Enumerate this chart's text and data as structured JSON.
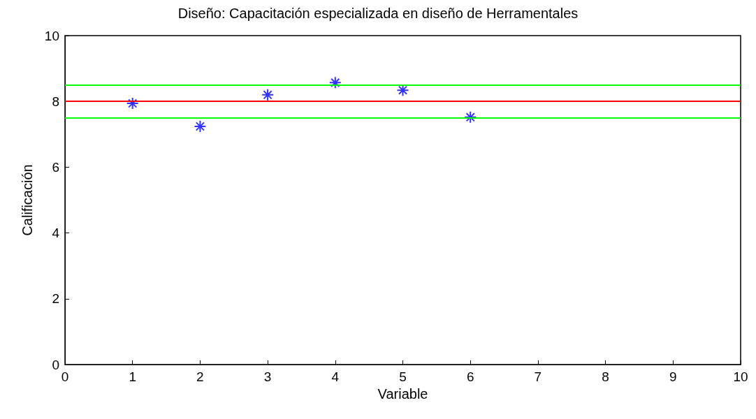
{
  "chart_data": {
    "type": "scatter",
    "title": "Diseño: Capacitación especializada en diseño de Herramentales",
    "xlabel": "Variable",
    "ylabel": "Calificación",
    "x": [
      1,
      2,
      3,
      4,
      5,
      6
    ],
    "series": [
      {
        "color": "#0000ff",
        "values": [
          7.94,
          7.24,
          8.2,
          8.57,
          8.34,
          7.52
        ]
      }
    ],
    "marker": "cross",
    "xlim": [
      0,
      10
    ],
    "xticks": [
      0,
      1,
      2,
      3,
      4,
      5,
      6,
      7,
      8,
      9,
      10
    ],
    "ylim": [
      0,
      10
    ],
    "yticks": [
      0,
      2,
      4,
      6,
      8,
      10
    ],
    "ref_lines": [
      {
        "axis": "y",
        "value": 8.5,
        "color": "#00ff00"
      },
      {
        "axis": "y",
        "value": 8,
        "color": "#ff0000"
      },
      {
        "axis": "y",
        "value": 7.5,
        "color": "#00ff00"
      }
    ],
    "grid": false
  }
}
